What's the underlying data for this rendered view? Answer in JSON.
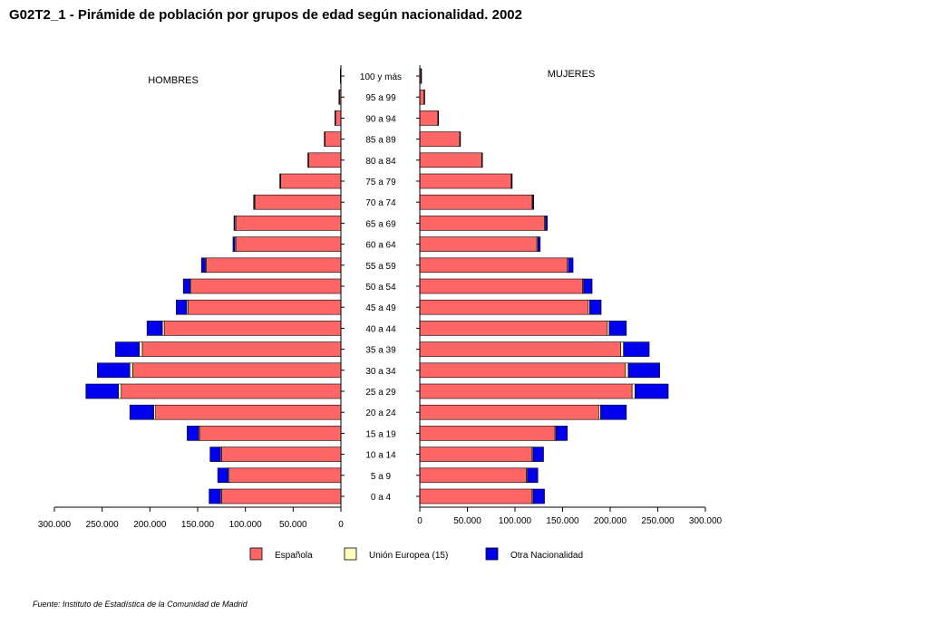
{
  "title": "G02T2_1 - Pirámide de población por grupos de edad según nacionalidad.  2002",
  "source": "Fuente: Instituto de Estadística de la Comunidad de Madrid",
  "chart_data": {
    "type": "bar",
    "orientation": "horizontal-pyramid",
    "panel_labels": {
      "left": "HOMBRES",
      "right": "MUJERES"
    },
    "categories": [
      "0 a 4",
      "5 a 9",
      "10 a 14",
      "15 a 19",
      "20 a 24",
      "25 a 29",
      "30 a 34",
      "35 a 39",
      "40 a 44",
      "45 a 49",
      "50 a 54",
      "55 a 59",
      "60 a 64",
      "65 a 69",
      "70 a 74",
      "75 a 79",
      "80 a 84",
      "85 a 89",
      "90 a 94",
      "95 a 99",
      "100 y más"
    ],
    "xlim": [
      0,
      300000
    ],
    "ticks": [
      0,
      50000,
      100000,
      150000,
      200000,
      250000,
      300000
    ],
    "tick_labels": [
      "0",
      "50.000",
      "100.000",
      "150.000",
      "200.000",
      "250.000",
      "300.000"
    ],
    "colors": {
      "Española": "#ff6666",
      "Unión Europea (15)": "#ffffc0",
      "Otra Nacionalidad": "#0000ee"
    },
    "legend_position": "bottom",
    "series_hombres": [
      {
        "name": "Española",
        "values": [
          125000,
          117000,
          125000,
          148000,
          194000,
          230000,
          218000,
          208000,
          185000,
          160000,
          157000,
          141000,
          110000,
          110000,
          90000,
          63000,
          34000,
          17000,
          6000,
          2000,
          500
        ]
      },
      {
        "name": "Unión Europea (15)",
        "values": [
          1000,
          1000,
          1000,
          1000,
          2000,
          3000,
          3000,
          3000,
          2000,
          1500,
          1000,
          1000,
          1000,
          1000,
          700,
          500,
          300,
          200,
          100,
          50,
          20
        ]
      },
      {
        "name": "Otra Nacionalidad",
        "values": [
          12000,
          11000,
          11000,
          12000,
          25000,
          34000,
          34000,
          25000,
          16000,
          11000,
          7000,
          4000,
          2000,
          1000,
          700,
          500,
          300,
          200,
          100,
          50,
          20
        ]
      }
    ],
    "series_mujeres": [
      {
        "name": "Española",
        "values": [
          118000,
          112000,
          118000,
          142000,
          188000,
          223000,
          216000,
          211000,
          197000,
          177000,
          171000,
          155000,
          123000,
          131000,
          118000,
          96000,
          65000,
          42000,
          19000,
          4500,
          1200
        ]
      },
      {
        "name": "Unión Europea (15)",
        "values": [
          1000,
          1000,
          1000,
          1000,
          2000,
          3000,
          3000,
          3000,
          2000,
          1500,
          1000,
          1000,
          1000,
          1000,
          700,
          500,
          300,
          200,
          100,
          50,
          20
        ]
      },
      {
        "name": "Otra Nacionalidad",
        "values": [
          12000,
          11000,
          11000,
          12000,
          27000,
          35000,
          33000,
          27000,
          18000,
          12000,
          9000,
          5000,
          2500,
          2000,
          1000,
          600,
          300,
          200,
          100,
          50,
          20
        ]
      }
    ]
  }
}
